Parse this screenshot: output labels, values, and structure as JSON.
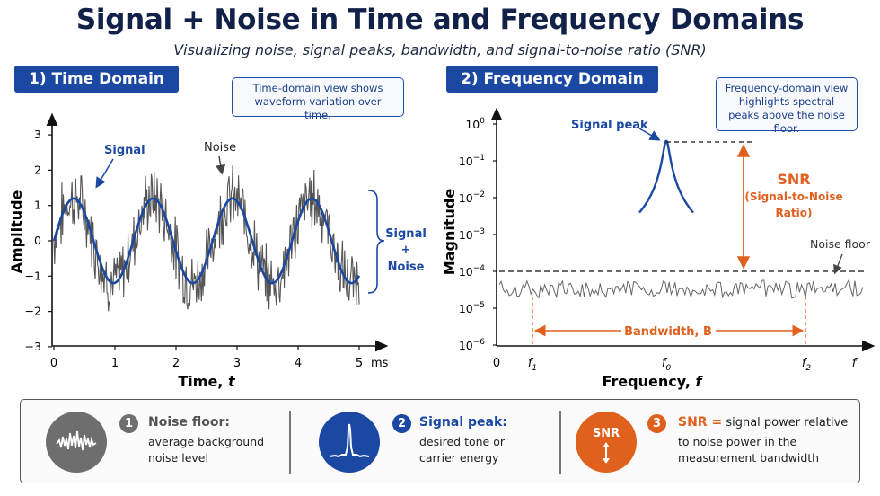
{
  "header": {
    "title": "Signal + Noise in Time and Frequency Domains",
    "subtitle": "Visualizing noise, signal peaks, bandwidth, and signal-to-noise ratio (SNR)"
  },
  "time_panel": {
    "tag": "1) Time Domain",
    "note": "Time-domain view shows waveform variation over time.",
    "ylabel": "Amplitude",
    "xlabel_main": "Time, ",
    "xlabel_var": "t",
    "x_unit": "ms",
    "y_ticks": [
      "3",
      "2",
      "1",
      "0",
      "−1",
      "−2",
      "−3"
    ],
    "x_ticks": [
      "0",
      "1",
      "2",
      "3",
      "4",
      "5"
    ],
    "signal_label": "Signal",
    "noise_label": "Noise",
    "combined_label_1": "Signal",
    "combined_label_2": "+",
    "combined_label_3": "Noise"
  },
  "freq_panel": {
    "tag": "2) Frequency Domain",
    "note": "Frequency-domain view highlights spectral peaks above the noise floor.",
    "ylabel": "Magnitude",
    "xlabel_main": "Frequency, ",
    "xlabel_var": "f",
    "y_tick_base": "10",
    "y_tick_exps": [
      "0",
      "−1",
      "−2",
      "−3",
      "−4",
      "−5",
      "−6"
    ],
    "x_zero": "0",
    "x_f1": "f",
    "x_f1_sub": "1",
    "x_f0": "f",
    "x_f0_sub": "0",
    "x_f2": "f",
    "x_f2_sub": "2",
    "x_f": "f",
    "peak_label": "Signal peak",
    "noise_floor_label": "Noise floor",
    "snr_label": "SNR",
    "snr_sub_1": "(Signal-to-Noise",
    "snr_sub_2": "Ratio)",
    "bandwidth_label": "Bandwidth, B"
  },
  "legend": {
    "items": [
      {
        "num": "1",
        "head": "Noise floor:",
        "body_1": "average background",
        "body_2": "noise level",
        "color": "#6e6e6e"
      },
      {
        "num": "2",
        "head": "Signal peak:",
        "body_1": "desired tone or",
        "body_2": "carrier energy",
        "color": "#1a48a3"
      },
      {
        "num": "3",
        "head": "SNR =",
        "head_rest": " signal power relative",
        "body_1": "to noise power in the",
        "body_2": "measurement bandwidth",
        "icon_text": "SNR",
        "color": "#e0601e"
      }
    ]
  },
  "colors": {
    "signal": "#1a48a3",
    "noise": "#555555",
    "accent": "#e0601e",
    "title": "#12214a"
  }
}
